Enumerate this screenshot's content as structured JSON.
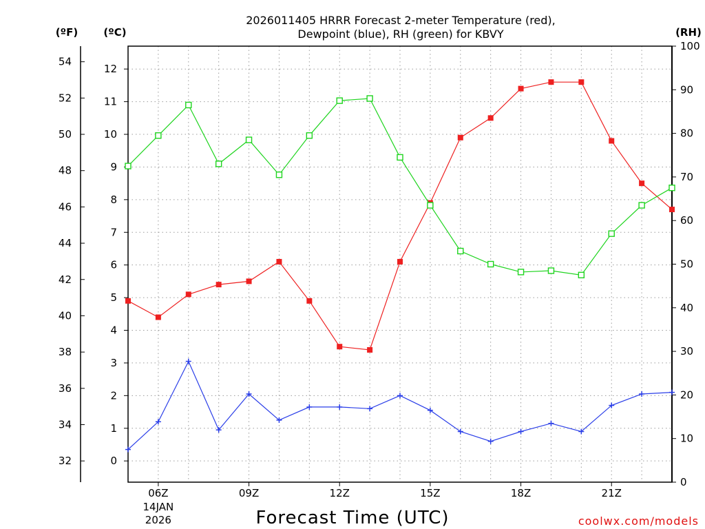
{
  "chart_data": {
    "type": "line",
    "title_lines": [
      "2026011405 HRRR Forecast 2-meter Temperature (red),",
      "Dewpoint (blue), RH (green) for KBVY"
    ],
    "xlabel": "Forecast Time (UTC)",
    "credit": "coolwx.com/models",
    "axis_units": {
      "fahrenheit": "(ºF)",
      "celsius": "(ºC)",
      "rh": "(RH)"
    },
    "x_hours": [
      5,
      6,
      7,
      8,
      9,
      10,
      11,
      12,
      13,
      14,
      15,
      16,
      17,
      18,
      19,
      20,
      21,
      22,
      23
    ],
    "xlim": [
      5,
      23
    ],
    "x_ticks": [
      {
        "hour": 6,
        "label": "06Z",
        "sub1": "14JAN",
        "sub2": "2026"
      },
      {
        "hour": 9,
        "label": "09Z"
      },
      {
        "hour": 12,
        "label": "12Z"
      },
      {
        "hour": 15,
        "label": "15Z"
      },
      {
        "hour": 18,
        "label": "18Z"
      },
      {
        "hour": 21,
        "label": "21Z"
      }
    ],
    "celsius_axis": {
      "ylim": [
        -0.65,
        12.7
      ],
      "ticks": [
        0,
        1,
        2,
        3,
        4,
        5,
        6,
        7,
        8,
        9,
        10,
        11,
        12
      ]
    },
    "fahrenheit_axis": {
      "ticks": [
        32,
        34,
        36,
        38,
        40,
        42,
        44,
        46,
        48,
        50,
        52,
        54
      ]
    },
    "rh_axis": {
      "ylim": [
        0,
        100
      ],
      "ticks": [
        0,
        10,
        20,
        30,
        40,
        50,
        60,
        70,
        80,
        90,
        100
      ]
    },
    "grid": true,
    "series": [
      {
        "key": "temperature",
        "units": "C",
        "color": "#ee2020",
        "marker": "filled-square",
        "values": [
          4.9,
          4.4,
          5.1,
          5.4,
          5.5,
          6.1,
          4.9,
          3.5,
          3.4,
          6.1,
          7.9,
          9.9,
          10.5,
          11.4,
          11.6,
          11.6,
          9.8,
          8.5,
          7.7
        ]
      },
      {
        "key": "dewpoint",
        "units": "C",
        "color": "#2a3ee8",
        "marker": "plus",
        "values": [
          0.35,
          1.2,
          3.05,
          0.95,
          2.05,
          1.25,
          1.65,
          1.65,
          1.6,
          2.0,
          1.55,
          0.9,
          0.6,
          0.9,
          1.15,
          0.9,
          1.7,
          2.05,
          2.1
        ]
      },
      {
        "key": "rh",
        "units": "%",
        "color": "#1ed41e",
        "marker": "open-square",
        "values": [
          72.5,
          79.5,
          86.5,
          73,
          78.5,
          70.5,
          79.5,
          87.5,
          88,
          74.5,
          63.5,
          53,
          50,
          48.2,
          48.5,
          47.5,
          57,
          63.5,
          67.5
        ]
      }
    ]
  }
}
